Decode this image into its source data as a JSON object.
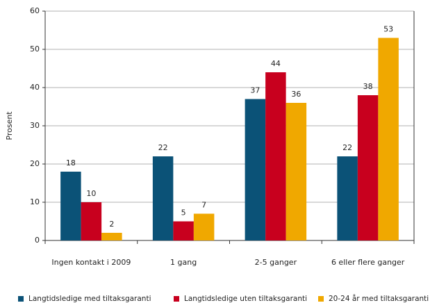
{
  "chart_data": {
    "type": "bar",
    "y_label": "Prosent",
    "categories": [
      "Ingen kontakt i 2009",
      "1 gang",
      "2-5 ganger",
      "6 eller flere ganger"
    ],
    "series": [
      {
        "name": "Langtidsledige med tiltaksgaranti",
        "color": "#0b5277",
        "values": [
          18,
          22,
          37,
          22
        ]
      },
      {
        "name": "Langtidsledige uten tiltaksgaranti",
        "color": "#c8001e",
        "values": [
          10,
          5,
          44,
          38
        ]
      },
      {
        "name": "20-24 år med tiltaksgaranti",
        "color": "#f0a800",
        "values": [
          2,
          7,
          36,
          53
        ]
      }
    ],
    "ylim": [
      0,
      60
    ],
    "yticks": [
      0,
      10,
      20,
      30,
      40,
      50,
      60
    ],
    "grid": true
  }
}
